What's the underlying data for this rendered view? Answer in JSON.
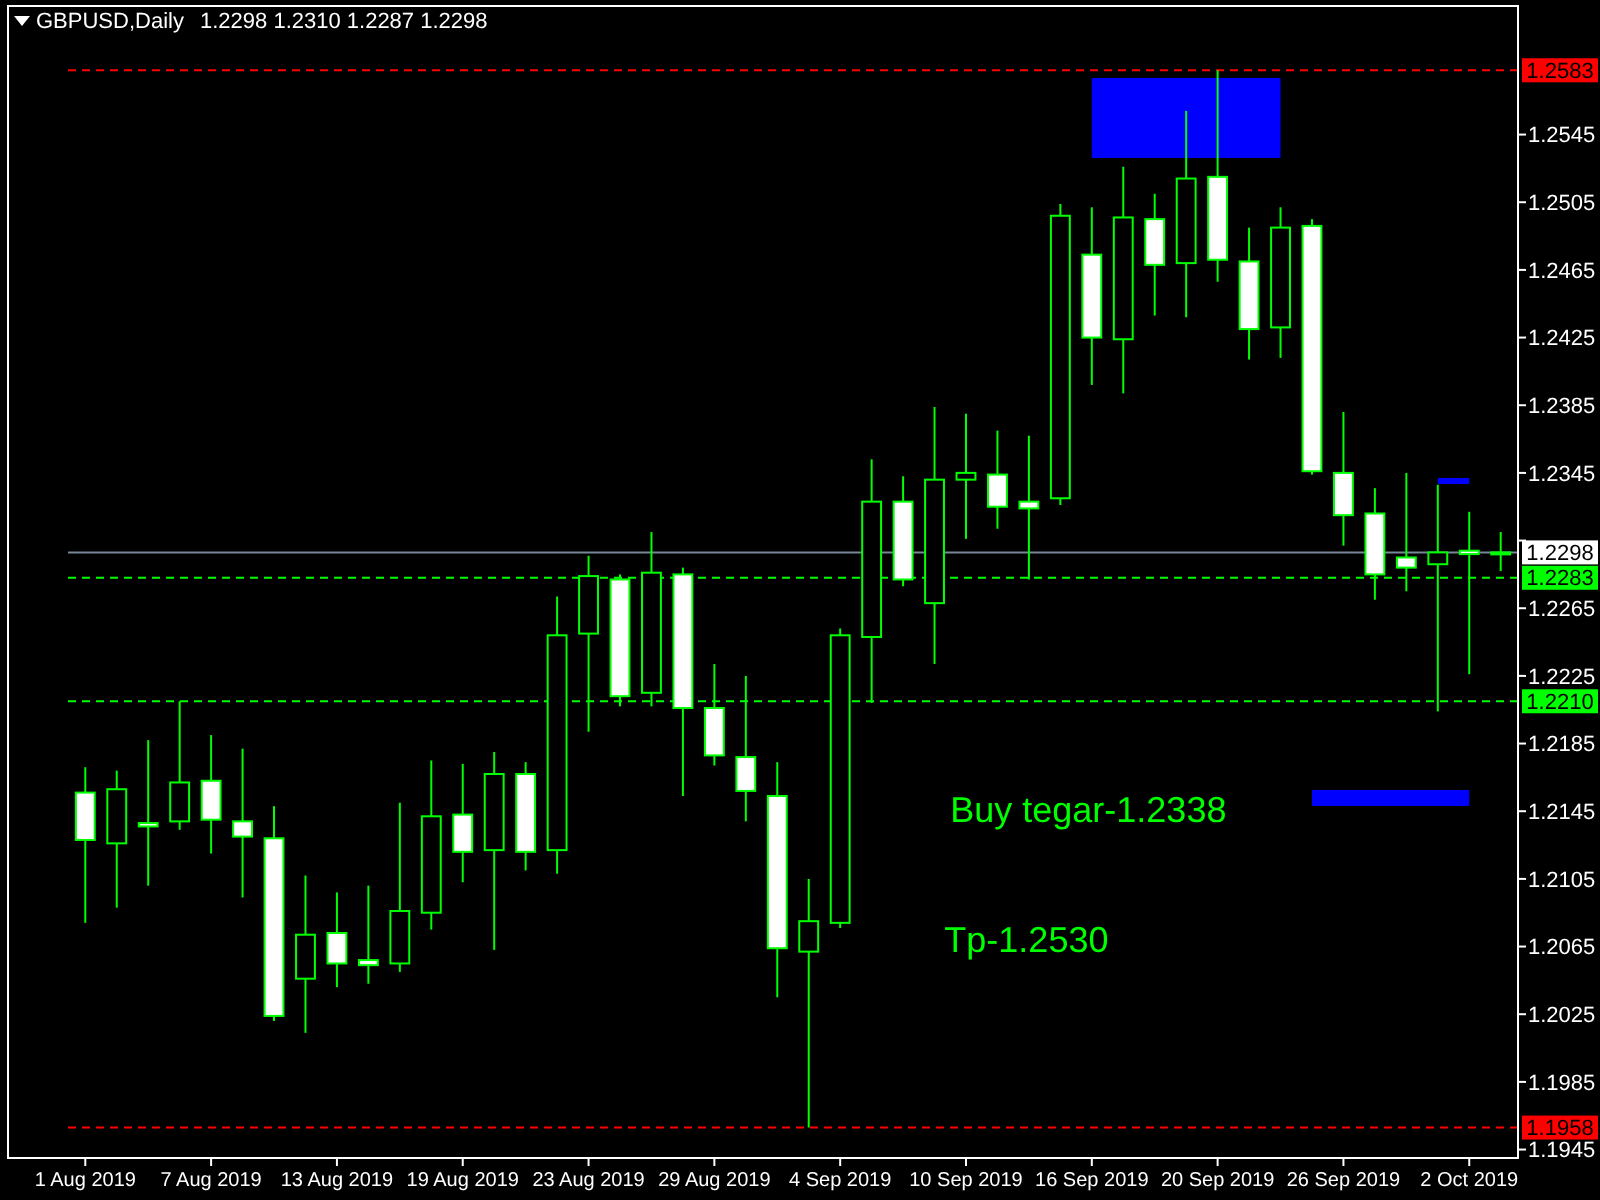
{
  "chart_data": {
    "type": "candlestick",
    "title": "GBPUSD,Daily",
    "subtitle": "1.2298 1.2310 1.2287 1.2298",
    "categories": [
      "1 Aug 2019",
      null,
      null,
      null,
      "7 Aug 2019",
      null,
      null,
      null,
      "13 Aug 2019",
      null,
      null,
      null,
      "19 Aug 2019",
      null,
      null,
      null,
      "23 Aug 2019",
      null,
      null,
      null,
      "29 Aug 2019",
      null,
      null,
      null,
      "4 Sep 2019",
      null,
      null,
      null,
      "10 Sep 2019",
      null,
      null,
      null,
      "16 Sep 2019",
      null,
      null,
      null,
      "20 Sep 2019",
      null,
      null,
      null,
      "26 Sep 2019",
      null,
      null,
      null,
      "2 Oct 2019",
      null
    ],
    "color": "#00ff00",
    "ohlc": [
      [
        1.2156,
        1.2171,
        1.2079,
        1.2128
      ],
      [
        1.2126,
        1.2169,
        1.2088,
        1.2158
      ],
      [
        1.2138,
        1.2187,
        1.2101,
        1.2136
      ],
      [
        1.2139,
        1.221,
        1.2134,
        1.2162
      ],
      [
        1.2163,
        1.219,
        1.212,
        1.214
      ],
      [
        1.2139,
        1.2182,
        1.2094,
        1.213
      ],
      [
        1.2129,
        1.2148,
        1.2021,
        1.2024
      ],
      [
        1.2046,
        1.2107,
        1.2014,
        1.2072
      ],
      [
        1.2073,
        1.2097,
        1.2041,
        1.2055
      ],
      [
        1.2057,
        1.2101,
        1.2043,
        1.2054
      ],
      [
        1.2055,
        1.215,
        1.205,
        1.2086
      ],
      [
        1.2085,
        1.2175,
        1.2075,
        1.2142
      ],
      [
        1.2143,
        1.2173,
        1.2103,
        1.2121
      ],
      [
        1.2122,
        1.218,
        1.2063,
        1.2167
      ],
      [
        1.2167,
        1.2174,
        1.211,
        1.2121
      ],
      [
        1.2122,
        1.2272,
        1.2108,
        1.2249
      ],
      [
        1.225,
        1.2296,
        1.2192,
        1.2284
      ],
      [
        1.2282,
        1.2285,
        1.2207,
        1.2213
      ],
      [
        1.2215,
        1.231,
        1.2207,
        1.2286
      ],
      [
        1.2285,
        1.2289,
        1.2154,
        1.2206
      ],
      [
        1.2206,
        1.2232,
        1.2172,
        1.2178
      ],
      [
        1.2177,
        1.2225,
        1.2139,
        1.2157
      ],
      [
        1.2154,
        1.2174,
        1.2035,
        1.2064
      ],
      [
        1.2062,
        1.2105,
        1.1958,
        1.208
      ],
      [
        1.2079,
        1.2253,
        1.2076,
        1.2249
      ],
      [
        1.2248,
        1.2353,
        1.2209,
        1.2328
      ],
      [
        1.2328,
        1.2343,
        1.2278,
        1.2282
      ],
      [
        1.2268,
        1.2384,
        1.2232,
        1.2341
      ],
      [
        1.2341,
        1.238,
        1.2306,
        1.2345
      ],
      [
        1.2344,
        1.237,
        1.2312,
        1.2325
      ],
      [
        1.2328,
        1.2367,
        1.2282,
        1.2324
      ],
      [
        1.233,
        1.2504,
        1.2326,
        1.2497
      ],
      [
        1.2474,
        1.2502,
        1.2397,
        1.2425
      ],
      [
        1.2424,
        1.2526,
        1.2392,
        1.2496
      ],
      [
        1.2495,
        1.251,
        1.2438,
        1.2468
      ],
      [
        1.2469,
        1.2559,
        1.2437,
        1.2519
      ],
      [
        1.252,
        1.2583,
        1.2458,
        1.2471
      ],
      [
        1.247,
        1.249,
        1.2412,
        1.243
      ],
      [
        1.2431,
        1.2502,
        1.2413,
        1.249
      ],
      [
        1.2491,
        1.2495,
        1.2344,
        1.2346
      ],
      [
        1.2345,
        1.2381,
        1.2302,
        1.232
      ],
      [
        1.2321,
        1.2336,
        1.227,
        1.2285
      ],
      [
        1.2295,
        1.2345,
        1.2275,
        1.2289
      ],
      [
        1.2291,
        1.2338,
        1.2204,
        1.2298
      ],
      [
        1.2299,
        1.2322,
        1.2226,
        1.2297
      ],
      [
        1.2298,
        1.231,
        1.2287,
        1.2298
      ]
    ],
    "ylim": [
      1.194,
      1.2621
    ],
    "yticks": [
      1.2545,
      1.2505,
      1.2465,
      1.2425,
      1.2385,
      1.2345,
      {
        "value": 1.2305,
        "label": null
      },
      1.2265,
      1.2225,
      1.2185,
      1.2145,
      1.2105,
      1.2065,
      1.2025,
      1.1985,
      1.1945
    ],
    "ref_lines": [
      {
        "axis": "y",
        "value": 1.2583,
        "label": "1.2583",
        "color": "#ff0000",
        "line_style": "dashed"
      },
      {
        "axis": "y",
        "value": 1.2298,
        "label": "1.2298",
        "color": "#778899",
        "line_style": "solid"
      },
      {
        "axis": "y",
        "value": 1.2283,
        "label": "1.2283",
        "color": "#00ff00",
        "line_style": "dashed"
      },
      {
        "axis": "y",
        "value": 1.221,
        "label": "1.2210",
        "color": "#00ff00",
        "line_style": "dashed"
      },
      {
        "axis": "y",
        "value": 1.1958,
        "label": "1.1958",
        "color": "#ff0000",
        "line_style": "dashed"
      }
    ],
    "annotations": [
      "Buy tegar-1.2338",
      "Tp-1.2530"
    ]
  }
}
